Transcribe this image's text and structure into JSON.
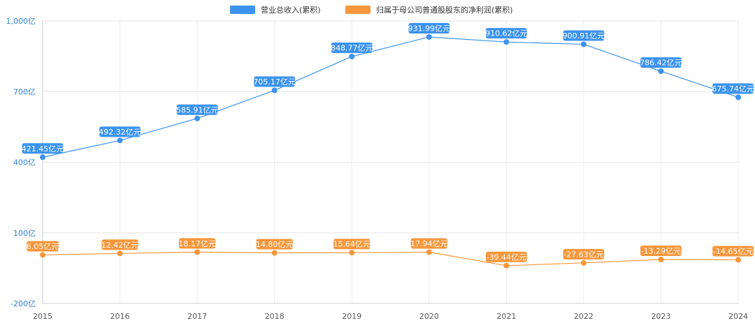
{
  "chart_data": {
    "type": "line",
    "x": [
      "2015",
      "2016",
      "2017",
      "2018",
      "2019",
      "2020",
      "2021",
      "2022",
      "2023",
      "2024"
    ],
    "y_ticks": [
      {
        "value": 1000,
        "label": "1,000亿"
      },
      {
        "value": 700,
        "label": "700亿"
      },
      {
        "value": 400,
        "label": "400亿"
      },
      {
        "value": 100,
        "label": "100亿"
      },
      {
        "value": -200,
        "label": "-200亿"
      }
    ],
    "ylim": [
      -200,
      1000
    ],
    "grid": true,
    "legend_position": "top-center",
    "series": [
      {
        "name": "营业总收入(累积)",
        "color": "#3b93ee",
        "values": [
          421.45,
          492.32,
          585.91,
          705.17,
          848.77,
          931.99,
          910.62,
          900.91,
          786.42,
          675.74
        ],
        "labels": [
          "421.45亿元",
          "492.32亿元",
          "585.91亿元",
          "705.17亿元",
          "848.77亿元",
          "931.99亿元",
          "910.62亿元",
          "900.91亿元",
          "786.42亿元",
          "675.74亿元"
        ]
      },
      {
        "name": "归属于母公司普通股股东的净利润(累积)",
        "color": "#f7973c",
        "values": [
          6.05,
          12.42,
          18.17,
          14.8,
          15.64,
          17.94,
          -39.44,
          -27.63,
          -13.29,
          -14.65
        ],
        "labels": [
          "6.05亿元",
          "12.42亿元",
          "18.17亿元",
          "14.80亿元",
          "15.64亿元",
          "17.94亿元",
          "-39.44亿元",
          "-27.63亿元",
          "-13.29亿元",
          "-14.65亿元"
        ]
      }
    ]
  }
}
